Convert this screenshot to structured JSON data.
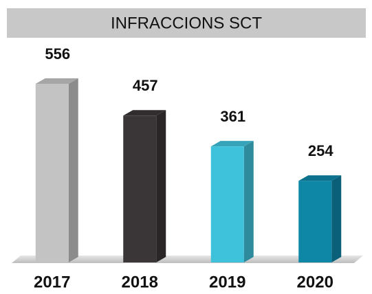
{
  "chart_data": {
    "type": "bar3d",
    "title": "INFRACCIONS SCT",
    "categories": [
      "2017",
      "2018",
      "2019",
      "2020"
    ],
    "values": [
      556,
      457,
      361,
      254
    ],
    "colors": [
      "#c3c3c3",
      "#3a3536",
      "#3ec1da",
      "#0e86a6"
    ]
  }
}
